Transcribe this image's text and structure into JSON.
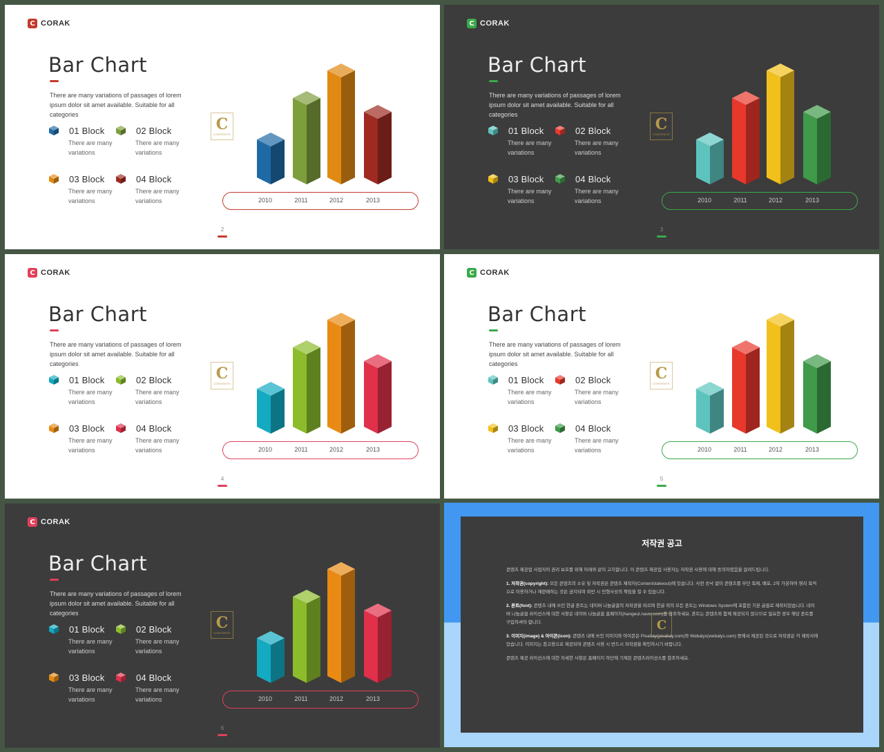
{
  "brand": {
    "name": "CORAK",
    "icon_letter": "C"
  },
  "slides": [
    {
      "page": "2",
      "theme": "light",
      "accent": "#c43a2c",
      "colors": [
        "#1f6aa5",
        "#7e9e3c",
        "#e08a13",
        "#9e2a22"
      ],
      "heights": [
        55,
        115,
        155,
        95
      ]
    },
    {
      "page": "3",
      "theme": "dark",
      "accent": "#3aaa4a",
      "colors": [
        "#5cc4bd",
        "#e8382c",
        "#f2c01a",
        "#3f9a4a"
      ],
      "heights": [
        55,
        115,
        155,
        95
      ]
    },
    {
      "page": "4",
      "theme": "light",
      "accent": "#e0405a",
      "colors": [
        "#13aac2",
        "#8cbc2c",
        "#e88a13",
        "#e0304a"
      ],
      "heights": [
        55,
        115,
        155,
        95
      ]
    },
    {
      "page": "5",
      "theme": "light",
      "accent": "#3aaa4a",
      "colors": [
        "#5cc4bd",
        "#e8382c",
        "#f2c01a",
        "#3f9a4a"
      ],
      "heights": [
        55,
        115,
        155,
        95
      ]
    },
    {
      "page": "6",
      "theme": "dark",
      "accent": "#e0405a",
      "colors": [
        "#13aac2",
        "#8cbc2c",
        "#e88a13",
        "#e0304a"
      ],
      "heights": [
        55,
        115,
        155,
        95
      ]
    }
  ],
  "content": {
    "title": "Bar Chart",
    "description": "There are many variations of passages of lorem ipsum dolor sit amet available. Suitable for all categories",
    "blocks": [
      {
        "label": "01 Block",
        "sub": "There are many variations"
      },
      {
        "label": "02 Block",
        "sub": "There are many variations"
      },
      {
        "label": "03 Block",
        "sub": "There are many variations"
      },
      {
        "label": "04 Block",
        "sub": "There are many variations"
      }
    ],
    "years": [
      "2010",
      "2011",
      "2012",
      "2013"
    ],
    "logo_letter": "C",
    "logo_sub": "CONTENTS"
  },
  "notice": {
    "title": "저작권 공고",
    "intro": "콘텐츠 제공업 사업자의 권리 보호를 위해 아래와 같이 고지합니다. 이 콘텐츠 제공업 사용자는 저작권 사용에 대해 동의하였음을 알려드립니다.",
    "sections": [
      {
        "head": "1. 저작권(copyright):",
        "text": "모든 콘텐츠의 소유 및 저작권은 콘텐츠 제작자(Contentstakeout)에 있습니다. 사전 승낙 없이 콘텐츠를 무단 복제, 배포, 2차 가공하여 영리 목적으로 이용하거나 재판매하는 것은 금지되며 위반 시 민형사상의 책임을 질 수 있습니다."
      },
      {
        "head": "2. 폰트(font):",
        "text": "콘텐츠 내에 쓰인 한글 폰트는 네이버 나눔글꼴의 저작권을 따르며 한글 외의 모든 폰트는 Windows System에 포함된 기본 글꼴로 제작되었습니다. 네이버 나눔글꼴 라이선스에 대한 사항은 네이버 나눔글꼴 홈페이지(hangeul.naver.com)를 참조하세요. 폰트는 콘텐츠와 함께 제공되지 않으므로 필요한 경우 해당 폰트를 구입하셔야 합니다."
      },
      {
        "head": "3. 이미지(image) & 아이콘(icon):",
        "text": "콘텐츠 내에 쓰인 이미지와 아이콘은 Pixabay(pixabay.com)와 Webalys(webalys.com) 등에서 제공된 것으로 저작권은 각 제작사에 있습니다. 이미지는 참고용으로 제공되며 콘텐츠 사용 시 반드시 저작권을 확인하시기 바랍니다."
      }
    ],
    "outro": "콘텐츠 제공 라이선스에 대한 자세한 사항은 홈페이지 하단에 기재된 콘텐츠라이선스를 참조하세요."
  }
}
